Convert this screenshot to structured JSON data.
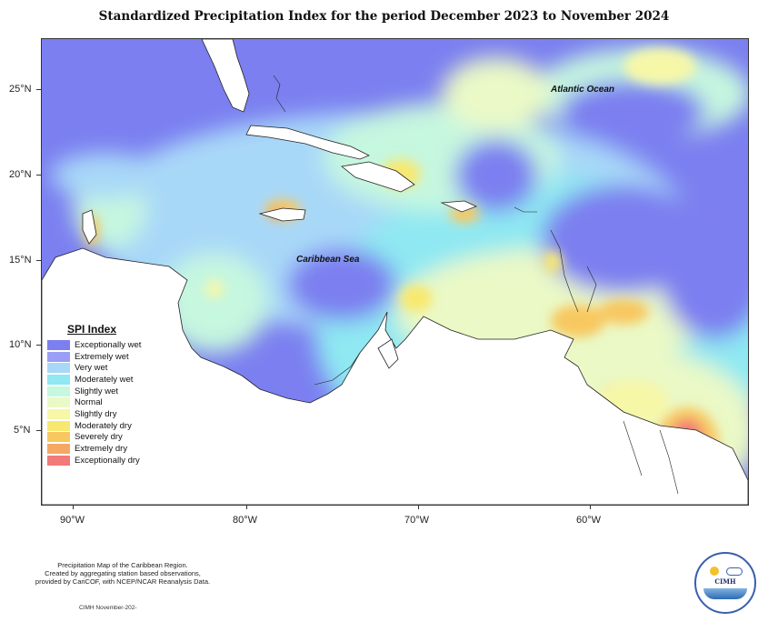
{
  "title": "Standardized Precipitation Index for the period December 2023 to November 2024",
  "axes": {
    "lat_ticks": [
      {
        "label": "25°N",
        "value": 25
      },
      {
        "label": "20°N",
        "value": 20
      },
      {
        "label": "15°N",
        "value": 15
      },
      {
        "label": "10°N",
        "value": 10
      },
      {
        "label": "5°N",
        "value": 5
      }
    ],
    "lon_ticks": [
      {
        "label": "90°W",
        "value": -90
      },
      {
        "label": "80°W",
        "value": -80
      },
      {
        "label": "70°W",
        "value": -70
      },
      {
        "label": "60°W",
        "value": -60
      }
    ]
  },
  "labels": {
    "atlantic": "Atlantic Ocean",
    "caribbean": "Caribbean Sea"
  },
  "legend": {
    "title": "SPI Index",
    "items": [
      {
        "label": "Exceptionally wet",
        "color": "#7b7ff0"
      },
      {
        "label": "Extremely wet",
        "color": "#9a9ff5"
      },
      {
        "label": "Very wet",
        "color": "#a8d8f8"
      },
      {
        "label": "Moderately wet",
        "color": "#8fe8f2"
      },
      {
        "label": "Slightly wet",
        "color": "#c6f7df"
      },
      {
        "label": "Normal",
        "color": "#eaf9c6"
      },
      {
        "label": "Slightly dry",
        "color": "#f7f7a8"
      },
      {
        "label": "Moderately dry",
        "color": "#f8e870"
      },
      {
        "label": "Severely dry",
        "color": "#f8c860"
      },
      {
        "label": "Extremely dry",
        "color": "#f5a862"
      },
      {
        "label": "Exceptionally dry",
        "color": "#f27a78"
      }
    ]
  },
  "footnote": {
    "line1": "Precipitation Map of the Caribbean Region.",
    "line2": "Created by aggregating station based observations,",
    "line3": "provided by CariCOF, with NCEP/NCAR Reanalysis Data.",
    "credit": "CIMH November-202-"
  },
  "logo": {
    "text": "CIMH"
  }
}
